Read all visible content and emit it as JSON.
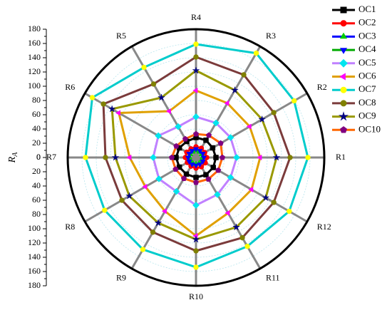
{
  "chart_data": {
    "type": "radar",
    "y_label": {
      "main": "R",
      "sub": "A"
    },
    "categories": [
      "R1",
      "R2",
      "R3",
      "R4",
      "R5",
      "R6",
      "R7",
      "R8",
      "R9",
      "R10",
      "R11",
      "R12"
    ],
    "ylim": [
      0,
      180
    ],
    "yticks": [
      0,
      20,
      40,
      60,
      80,
      100,
      120,
      140,
      160,
      180
    ],
    "grid": true,
    "legend": "right",
    "series": [
      {
        "name": "OC1",
        "line_color": "#000000",
        "marker_color": "#000000",
        "marker": "square",
        "values": [
          28,
          27,
          28,
          28,
          26,
          27,
          28,
          27,
          27,
          28,
          28,
          28
        ]
      },
      {
        "name": "OC2",
        "line_color": "#ff0000",
        "marker_color": "#ff0000",
        "marker": "circle",
        "values": [
          15,
          14,
          15,
          15,
          14,
          15,
          15,
          14,
          14,
          15,
          15,
          15
        ]
      },
      {
        "name": "OC3",
        "line_color": "#0000ff",
        "marker_color": "#00cc00",
        "marker": "triangle-up",
        "values": [
          9,
          9,
          9,
          10,
          9,
          9,
          9,
          9,
          9,
          9,
          9,
          9
        ]
      },
      {
        "name": "OC4",
        "line_color": "#00aa00",
        "marker_color": "#0000ff",
        "marker": "triangle-down",
        "values": [
          11,
          11,
          11,
          12,
          11,
          11,
          11,
          11,
          11,
          11,
          11,
          11
        ]
      },
      {
        "name": "OC5",
        "line_color": "#c080ff",
        "marker_color": "#00e5ee",
        "marker": "diamond",
        "values": [
          57,
          56,
          56,
          57,
          50,
          61,
          60,
          60,
          55,
          67,
          60,
          56
        ]
      },
      {
        "name": "OC6",
        "line_color": "#e0a000",
        "marker_color": "#ff00ff",
        "marker": "triangle-left",
        "values": [
          90,
          87,
          88,
          94,
          75,
          125,
          93,
          82,
          87,
          110,
          90,
          90
        ]
      },
      {
        "name": "OC7",
        "line_color": "#00cccc",
        "marker_color": "#ffff00",
        "marker": "circle",
        "values": [
          157,
          159,
          169,
          159,
          146,
          168,
          155,
          148,
          149,
          154,
          144,
          151
        ]
      },
      {
        "name": "OC8",
        "line_color": "#7b3b3b",
        "marker_color": "#808000",
        "marker": "circle",
        "values": [
          132,
          126,
          134,
          141,
          119,
          150,
          127,
          120,
          121,
          131,
          130,
          126
        ]
      },
      {
        "name": "OC9",
        "line_color": "#999900",
        "marker_color": "#000080",
        "marker": "star",
        "values": [
          113,
          107,
          109,
          122,
          97,
          136,
          113,
          108,
          106,
          115,
          113,
          113
        ]
      },
      {
        "name": "OC10",
        "line_color": "#ff6600",
        "marker_color": "#800080",
        "marker": "pentagon",
        "values": [
          37,
          40,
          36,
          33,
          30,
          32,
          34,
          33,
          34,
          35,
          35,
          36
        ]
      }
    ]
  }
}
